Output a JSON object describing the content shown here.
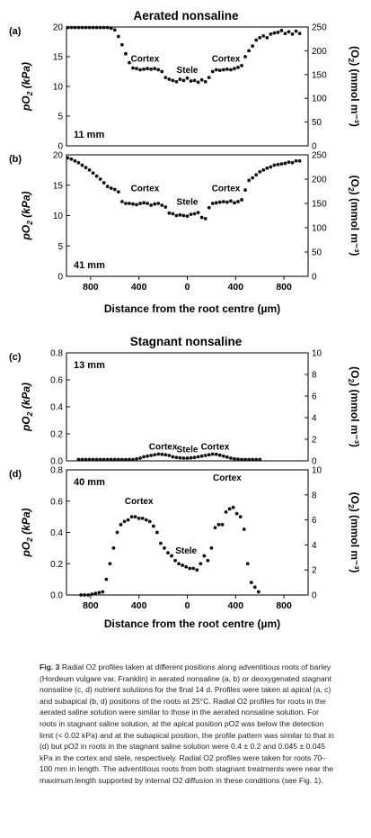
{
  "figure": {
    "group_titles": [
      "Aerated nonsaline",
      "Stagnant nonsaline"
    ],
    "xlabel": "Distance from the root centre (µm)",
    "ylabel_left": "pO2 (kPa)",
    "ylabel_right": "(O2) (mmol m-3)"
  },
  "caption": {
    "label": "Fig. 3",
    "text": "Radial O2 profiles taken at different positions along adventitious roots of barley (Hordeum vulgare var. Franklin) in aerated nonsaline (a, b) or deoxygenated stagnant nonsaline (c, d) nutrient solutions for the final 14 d. Profiles were taken at apical (a, c) and subapical (b, d) positions of the roots at 25°C. Radial O2 profiles for roots in the aerated saline solution were similar to those in the aerated nonsaline solution. For roots in stagnant saline solution, at the apical position pO2 was below the detection limit (< 0.02 kPa) and at the subapical position, the profile pattern was similar to that in (d) but pO2 in roots in the stagnant saline solution were 0.4 ± 0.2 and 0.045 ± 0.045 kPa in the cortex and stele, respectively. Radial O2 profiles were taken for roots 70–100 mm in length. The adventitious roots from both stagnant treatments were near the maximum length supported by internal O2 diffusion in these conditions (see Fig. 1)."
  },
  "chart_data": [
    {
      "type": "scatter",
      "panel": "(a)",
      "annotation": "11 mm",
      "ylim": [
        0,
        20
      ],
      "yticks": [
        0,
        5,
        10,
        15,
        20
      ],
      "y2lim": [
        0,
        250
      ],
      "y2ticks": [
        0,
        50,
        100,
        150,
        200,
        250
      ],
      "xlim": [
        1000,
        -1000
      ],
      "xticks": [],
      "region_labels": [
        {
          "text": "Cortex",
          "x": 350,
          "y": 14.2
        },
        {
          "text": "Stele",
          "x": 0,
          "y": 12.3
        },
        {
          "text": "Cortex",
          "x": -320,
          "y": 14.2
        }
      ],
      "x": [
        990,
        960,
        930,
        900,
        870,
        840,
        810,
        780,
        750,
        720,
        690,
        660,
        630,
        600,
        570,
        540,
        510,
        480,
        450,
        420,
        390,
        360,
        330,
        300,
        270,
        240,
        210,
        180,
        150,
        120,
        90,
        60,
        30,
        0,
        -30,
        -60,
        -90,
        -120,
        -150,
        -180,
        -210,
        -240,
        -270,
        -300,
        -330,
        -360,
        -390,
        -420,
        -450,
        -480,
        -510,
        -540,
        -570,
        -600,
        -630,
        -660,
        -690,
        -720,
        -750,
        -780,
        -810,
        -840,
        -870,
        -900,
        -930
      ],
      "y": [
        19.9,
        19.9,
        19.9,
        19.9,
        19.9,
        19.9,
        19.9,
        19.9,
        19.9,
        19.9,
        19.9,
        19.9,
        19.8,
        19.5,
        18.4,
        17.0,
        15.5,
        14.0,
        13.1,
        13.0,
        12.8,
        12.9,
        13.0,
        12.9,
        13.0,
        12.8,
        12.5,
        11.5,
        11.2,
        11.0,
        10.8,
        11.2,
        11.0,
        11.4,
        10.9,
        11.0,
        10.7,
        11.1,
        10.8,
        11.5,
        12.5,
        12.8,
        12.7,
        12.8,
        12.9,
        12.8,
        13.0,
        13.2,
        13.5,
        15.0,
        16.0,
        16.8,
        17.8,
        18.2,
        18.5,
        18.2,
        18.8,
        19.0,
        19.1,
        19.4,
        18.9,
        19.2,
        18.8,
        19.3,
        18.9
      ]
    },
    {
      "type": "scatter",
      "panel": "(b)",
      "annotation": "41 mm",
      "ylim": [
        0,
        20
      ],
      "yticks": [
        0,
        5,
        10,
        15,
        20
      ],
      "y2lim": [
        0,
        250
      ],
      "y2ticks": [
        0,
        50,
        100,
        150,
        200,
        250
      ],
      "xlim": [
        1000,
        -1000
      ],
      "xticks": [
        800,
        400,
        0,
        400,
        800
      ],
      "region_labels": [
        {
          "text": "Cortex",
          "x": 350,
          "y": 14.0
        },
        {
          "text": "Stele",
          "x": 0,
          "y": 11.8
        },
        {
          "text": "Cortex",
          "x": -320,
          "y": 14.0
        }
      ],
      "x": [
        990,
        960,
        930,
        900,
        870,
        840,
        810,
        780,
        750,
        720,
        690,
        660,
        630,
        600,
        570,
        540,
        510,
        480,
        450,
        420,
        390,
        360,
        330,
        300,
        270,
        240,
        210,
        180,
        150,
        120,
        90,
        60,
        30,
        0,
        -30,
        -60,
        -90,
        -120,
        -150,
        -180,
        -210,
        -240,
        -270,
        -300,
        -330,
        -360,
        -390,
        -420,
        -450,
        -480,
        -510,
        -540,
        -570,
        -600,
        -630,
        -660,
        -690,
        -720,
        -750,
        -780,
        -810,
        -840,
        -870,
        -900,
        -930
      ],
      "y": [
        19.5,
        19.3,
        19.0,
        18.7,
        18.3,
        17.9,
        17.5,
        17.0,
        16.5,
        16.0,
        15.4,
        14.8,
        14.5,
        14.3,
        13.9,
        12.3,
        12.0,
        12.0,
        11.9,
        11.8,
        12.0,
        12.1,
        12.0,
        11.7,
        11.9,
        12.0,
        11.7,
        11.4,
        10.4,
        10.3,
        10.0,
        10.1,
        10.0,
        9.9,
        10.2,
        10.3,
        10.5,
        9.7,
        9.5,
        11.3,
        12.0,
        12.1,
        12.2,
        12.3,
        12.2,
        12.4,
        12.1,
        12.3,
        12.6,
        14.2,
        15.8,
        16.2,
        16.7,
        17.2,
        17.5,
        17.8,
        18.0,
        18.3,
        18.4,
        18.5,
        18.6,
        18.8,
        18.7,
        19.0,
        19.0
      ]
    },
    {
      "type": "scatter",
      "panel": "(c)",
      "annotation": "13 mm",
      "ylim": [
        0,
        0.8
      ],
      "yticks": [
        0.0,
        0.2,
        0.4,
        0.6,
        0.8
      ],
      "y2lim": [
        0,
        10
      ],
      "y2ticks": [
        0,
        2,
        4,
        6,
        8,
        10
      ],
      "xlim": [
        1000,
        -1000
      ],
      "xticks": [],
      "region_labels": [
        {
          "text": "Cortex",
          "x": 200,
          "y": 0.085
        },
        {
          "text": "Stele",
          "x": 0,
          "y": 0.065
        },
        {
          "text": "Cortex",
          "x": -230,
          "y": 0.085
        }
      ],
      "x": [
        900,
        870,
        840,
        810,
        780,
        750,
        720,
        690,
        660,
        630,
        600,
        570,
        540,
        510,
        480,
        450,
        420,
        390,
        360,
        330,
        300,
        270,
        240,
        210,
        180,
        150,
        120,
        90,
        60,
        30,
        0,
        -30,
        -60,
        -90,
        -120,
        -150,
        -180,
        -210,
        -240,
        -270,
        -300,
        -330,
        -360,
        -390,
        -420,
        -450,
        -480,
        -510,
        -540,
        -570,
        -600
      ],
      "y": [
        0.01,
        0.01,
        0.01,
        0.01,
        0.01,
        0.01,
        0.01,
        0.01,
        0.01,
        0.01,
        0.01,
        0.01,
        0.01,
        0.01,
        0.01,
        0.01,
        0.015,
        0.02,
        0.03,
        0.035,
        0.04,
        0.045,
        0.05,
        0.048,
        0.045,
        0.04,
        0.03,
        0.025,
        0.022,
        0.02,
        0.02,
        0.022,
        0.025,
        0.03,
        0.035,
        0.04,
        0.045,
        0.05,
        0.048,
        0.042,
        0.035,
        0.028,
        0.02,
        0.015,
        0.012,
        0.01,
        0.01,
        0.01,
        0.01,
        0.01,
        0.01
      ]
    },
    {
      "type": "scatter",
      "panel": "(d)",
      "annotation": "40 mm",
      "ylim": [
        0,
        0.8
      ],
      "yticks": [
        0.0,
        0.2,
        0.4,
        0.6,
        0.8
      ],
      "y2lim": [
        0,
        10
      ],
      "y2ticks": [
        0,
        2,
        4,
        6,
        8,
        10
      ],
      "xlim": [
        1000,
        -1000
      ],
      "xticks": [
        800,
        400,
        0,
        400,
        800
      ],
      "region_labels": [
        {
          "text": "Cortex",
          "x": 400,
          "y": 0.58
        },
        {
          "text": "Stele",
          "x": 10,
          "y": 0.265
        },
        {
          "text": "Cortex",
          "x": -330,
          "y": 0.73
        }
      ],
      "x": [
        880,
        850,
        820,
        790,
        760,
        730,
        700,
        670,
        640,
        610,
        580,
        550,
        520,
        490,
        460,
        430,
        400,
        370,
        340,
        310,
        280,
        250,
        220,
        190,
        160,
        130,
        100,
        70,
        40,
        10,
        -20,
        -50,
        -80,
        -110,
        -140,
        -170,
        -200,
        -230,
        -260,
        -290,
        -320,
        -350,
        -380,
        -410,
        -440,
        -470,
        -500,
        -530,
        -560,
        -590
      ],
      "y": [
        0.0,
        0.0,
        0.0,
        0.005,
        0.01,
        0.015,
        0.02,
        0.1,
        0.2,
        0.3,
        0.4,
        0.45,
        0.47,
        0.48,
        0.5,
        0.5,
        0.49,
        0.49,
        0.48,
        0.47,
        0.44,
        0.4,
        0.33,
        0.3,
        0.27,
        0.25,
        0.22,
        0.2,
        0.19,
        0.18,
        0.17,
        0.17,
        0.16,
        0.2,
        0.25,
        0.22,
        0.3,
        0.43,
        0.45,
        0.45,
        0.53,
        0.55,
        0.56,
        0.52,
        0.5,
        0.42,
        0.2,
        0.08,
        0.05,
        0.02
      ]
    }
  ]
}
